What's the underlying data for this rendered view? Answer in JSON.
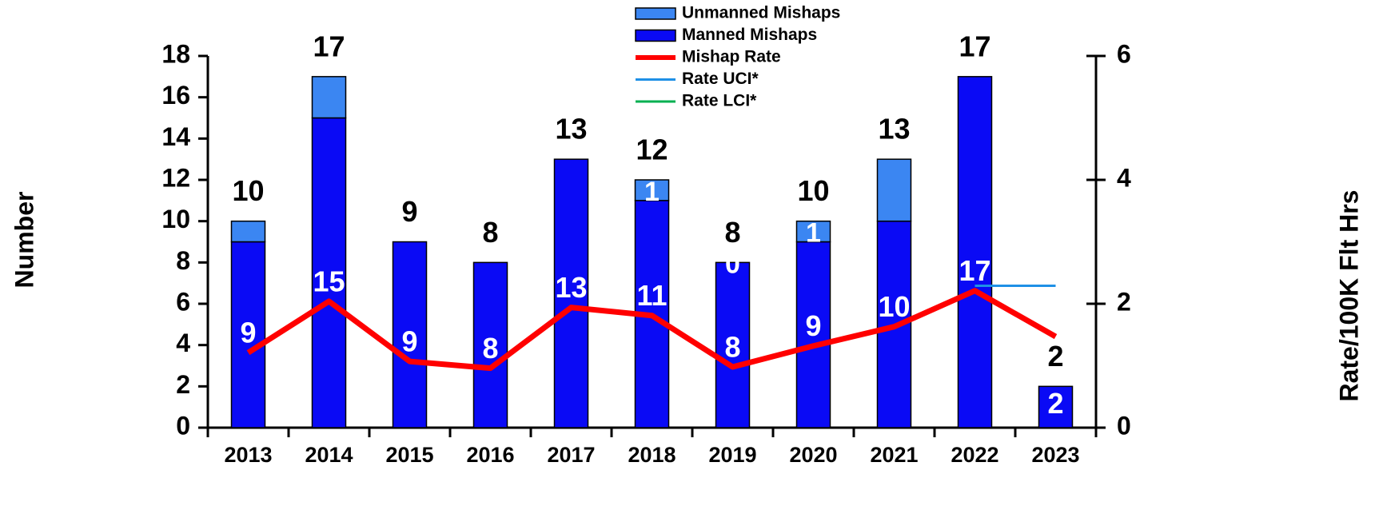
{
  "chart_data": {
    "type": "bar",
    "categories": [
      "2013",
      "2014",
      "2015",
      "2016",
      "2017",
      "2018",
      "2019",
      "2020",
      "2021",
      "2022",
      "2023"
    ],
    "series": [
      {
        "name": "Unmanned Mishaps",
        "color": "#3b86f2",
        "values": [
          1,
          2,
          0,
          0,
          0,
          1,
          0,
          1,
          3,
          0,
          0
        ],
        "value_labels": [
          null,
          null,
          null,
          null,
          null,
          "1",
          "0",
          "1",
          null,
          null,
          null
        ]
      },
      {
        "name": "Manned Mishaps",
        "color": "#0a0af5",
        "values": [
          9,
          15,
          9,
          8,
          13,
          11,
          8,
          9,
          10,
          17,
          2
        ]
      },
      {
        "name": "Mishap Rate",
        "color": "#ff0000",
        "axis": "y2",
        "values": [
          1.21,
          2.04,
          1.07,
          0.96,
          1.94,
          1.81,
          0.98,
          1.32,
          1.63,
          2.21,
          1.47
        ]
      },
      {
        "name": "Rate UCI*",
        "color": "#1e90e6",
        "axis": "y2",
        "values": [
          null,
          null,
          null,
          null,
          null,
          null,
          null,
          null,
          null,
          2.29,
          2.29
        ]
      },
      {
        "name": "Rate LCI*",
        "color": "#00b050",
        "axis": "y2",
        "values": [
          null,
          null,
          null,
          null,
          null,
          null,
          null,
          null,
          null,
          null,
          null
        ]
      }
    ],
    "totals": [
      10,
      17,
      9,
      8,
      13,
      12,
      8,
      10,
      13,
      17,
      2
    ],
    "ylabel": "Number",
    "y2label": "Rate/100K Flt Hrs",
    "ylim": [
      0,
      18
    ],
    "yticks": [
      0,
      2,
      4,
      6,
      8,
      10,
      12,
      14,
      16,
      18
    ],
    "y2lim": [
      0,
      6
    ],
    "y2ticks": [
      0,
      2,
      4,
      6
    ]
  }
}
